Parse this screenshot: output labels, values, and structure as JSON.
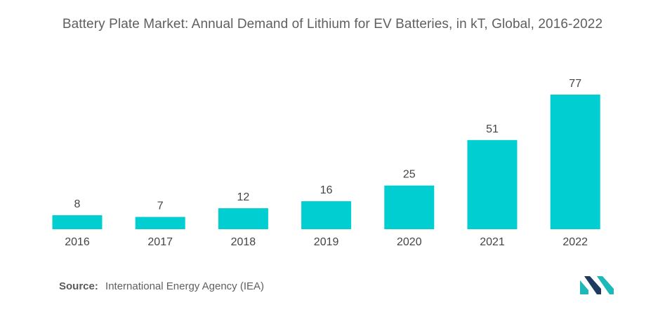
{
  "title": "Battery Plate Market: Annual Demand of Lithium for EV Batteries, in kT, Global, 2016-2022",
  "source": {
    "label": "Source:",
    "text": "International Energy Agency (IEA)"
  },
  "colors": {
    "bar": "#00ced1",
    "logo_teal": "#18b2b2",
    "logo_dark": "#1e3a5f"
  },
  "logo_icon": "mordor-intelligence-logo",
  "chart_data": {
    "type": "bar",
    "title": "Battery Plate Market: Annual Demand of Lithium for EV Batteries, in kT, Global, 2016-2022",
    "xlabel": "",
    "ylabel": "",
    "categories": [
      "2016",
      "2017",
      "2018",
      "2019",
      "2020",
      "2021",
      "2022"
    ],
    "values": [
      8,
      7,
      12,
      16,
      25,
      51,
      77
    ],
    "data_labels": [
      "8",
      "7",
      "12",
      "16",
      "25",
      "51",
      "77"
    ],
    "ylim": [
      0,
      77
    ],
    "grid": false,
    "legend": "none"
  }
}
